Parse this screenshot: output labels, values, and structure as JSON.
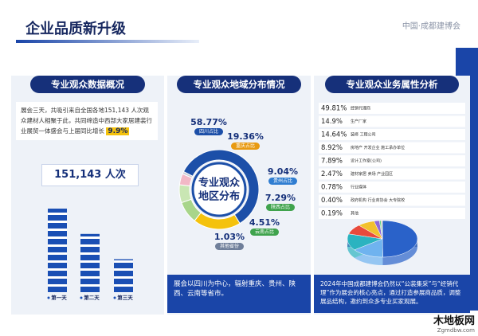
{
  "header": {
    "title": "企业品质新升级",
    "brand": "中国·成都建博会"
  },
  "overview": {
    "title": "专业观众数据概况",
    "text": "展会三天，共吸引来自全国各地151,143 人次观众建材人相聚于此，共同缔造中西部大家居建装行业展贸一体盛会与上届同比增长",
    "growth": "9.9%",
    "total": "151,143 人次",
    "chart": {
      "type": "bar",
      "categories": [
        "第一天",
        "第二天",
        "第三天"
      ],
      "values": [
        10,
        7,
        4
      ],
      "color": "#1a4fb4"
    }
  },
  "region": {
    "title": "专业观众地域分布情况",
    "center": [
      "专业观众",
      "地区分布"
    ],
    "chart": {
      "type": "donut",
      "categories": [
        "四川占比",
        "重庆占比",
        "贵州占比",
        "陕西占比",
        "云南占比",
        "其他省份"
      ],
      "values": [
        58.77,
        19.36,
        9.04,
        7.29,
        4.51,
        1.03
      ],
      "value_labels": [
        "58.77%",
        "19.36%",
        "9.04%",
        "7.29%",
        "4.51%",
        "1.03%"
      ],
      "colors": [
        "#1c4fa8",
        "#f4c20d",
        "#a8d58a",
        "#c9e6b3",
        "#f2b8c6",
        "#c9cdd6"
      ],
      "label_colors": [
        "#1c4fa8",
        "#e89a12",
        "#2f7dd1",
        "#3fa34d",
        "#3fa34d",
        "#6f7f9a"
      ]
    },
    "note": "展会以四川为中心，辐射重庆、贵州、陕西、云南等省市。"
  },
  "business": {
    "title": "专业观众业务属性分析",
    "chart": {
      "type": "pie3d",
      "categories": [
        "经销代理商",
        "生产厂家",
        "装修 工程公司",
        "房地产 开发企业 施工承办单位",
        "设计工作室(公司)",
        "建材家居 卖场 产业园区",
        "行业媒体",
        "政府机构 行业商协会 大专院校",
        "其他"
      ],
      "values": [
        49.81,
        14.9,
        14.64,
        8.92,
        7.89,
        2.47,
        0.78,
        0.4,
        0.19
      ],
      "value_labels": [
        "49.81%",
        "14.9%",
        "14.64%",
        "8.92%",
        "7.89%",
        "2.47%",
        "0.78%",
        "0.40%",
        "0.19%"
      ],
      "colors": [
        "#2a62c9",
        "#6fb3ef",
        "#2bb3c0",
        "#e84a3c",
        "#f2c12e",
        "#8e6ad8",
        "#5bd18b",
        "#f08a3c",
        "#9aa3b5"
      ]
    },
    "note": "2024年中国成都建博会仍然以“公装集采”与“经销代理”作为展会的核心亮点，通过打造参展商品质，调整展品结构，邀约到众多专业买家观展。"
  },
  "watermark": {
    "name": "木地板网",
    "url": "Zgmdbw.com"
  }
}
